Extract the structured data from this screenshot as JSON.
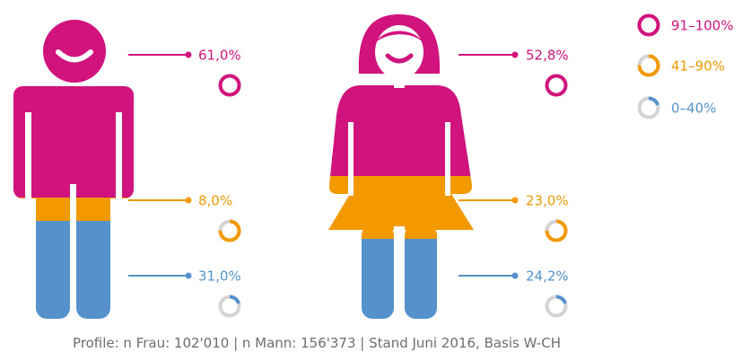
{
  "colors": {
    "magenta": "#d1147d",
    "orange": "#f29900",
    "blue": "#5592cc",
    "grey": "#d4d4d4"
  },
  "legend": [
    {
      "label": "91–100%",
      "color": "#d1147d",
      "value": 1.0
    },
    {
      "label": "41–90%",
      "color": "#f29900",
      "value": 0.75
    },
    {
      "label": "0–40%",
      "color": "#5592cc",
      "value": 0.2
    }
  ],
  "footnote": "Profile: n Frau: 102'010 | n Mann: 156'373 | Stand Juni 2016, Basis W-CH",
  "chart_data": {
    "type": "pictogram",
    "categories": [
      "91–100%",
      "41–90%",
      "0–40%"
    ],
    "series": [
      {
        "name": "Mann",
        "labels": [
          "61,0%",
          "8,0%",
          "31,0%"
        ],
        "values": [
          61.0,
          8.0,
          31.0
        ]
      },
      {
        "name": "Frau",
        "labels": [
          "52,8%",
          "23,0%",
          "24,2%"
        ],
        "values": [
          52.8,
          23.0,
          24.2
        ]
      }
    ],
    "indicator_fill": [
      1.0,
      0.75,
      0.2
    ]
  }
}
